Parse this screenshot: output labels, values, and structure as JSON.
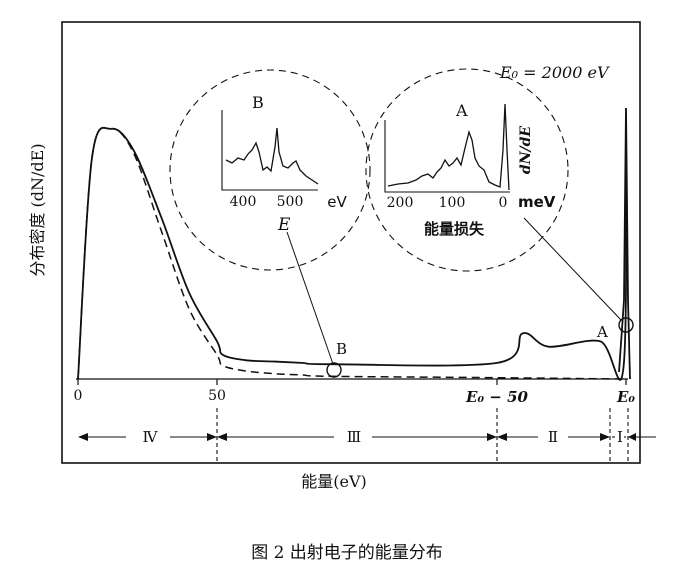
{
  "chart_data": {
    "type": "line",
    "title": "",
    "caption": "图 2   出射电子的能量分布",
    "xlabel": "能量(eV)",
    "ylabel": "分布密度 (dN/dE)",
    "x_ticks": [
      "0",
      "50",
      "E₀ − 50",
      "E₀"
    ],
    "e0_label": "E₀ = 2000 eV",
    "regions": [
      "Ⅳ",
      "Ⅲ",
      "Ⅱ",
      "Ⅰ"
    ],
    "markers": {
      "A": "A",
      "B": "B",
      "E": "E"
    },
    "series": [
      {
        "style": "solid",
        "x": [
          0,
          5,
          12,
          20,
          30,
          40,
          50,
          60,
          100,
          150,
          200,
          250,
          1950,
          1960,
          1970,
          1990,
          1999,
          2000
        ],
        "y": [
          0.0,
          0.82,
          0.93,
          0.85,
          0.6,
          0.32,
          0.14,
          0.09,
          0.07,
          0.065,
          0.06,
          0.055,
          0.06,
          0.17,
          0.12,
          0.14,
          0.04,
          0.95
        ]
      },
      {
        "style": "dashed",
        "x": [
          0,
          5,
          12,
          20,
          30,
          40,
          50,
          60,
          100,
          150,
          200,
          250,
          1950,
          1999
        ],
        "y": [
          0.0,
          0.82,
          0.93,
          0.84,
          0.55,
          0.26,
          0.09,
          0.05,
          0.03,
          0.02,
          0.015,
          0.01,
          0.005,
          0.0
        ]
      }
    ],
    "inset_B": {
      "label": "B",
      "x_unit": "eV",
      "x_ticks": [
        "400",
        "500"
      ]
    },
    "inset_A": {
      "label": "A",
      "x_unit": "meV",
      "x_ticks": [
        "200",
        "100",
        "0"
      ],
      "ylabel": "dN/dE",
      "xlabel": "能量损失"
    }
  }
}
